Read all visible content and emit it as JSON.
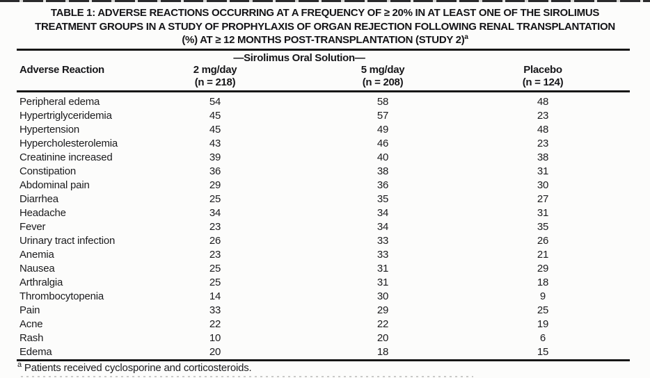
{
  "title": {
    "line1": "TABLE 1: ADVERSE REACTIONS OCCURRING AT A FREQUENCY OF ≥ 20% IN AT LEAST ONE OF THE SIROLIMUS",
    "line2": "TREATMENT GROUPS IN A STUDY OF PROPHYLAXIS OF ORGAN REJECTION FOLLOWING RENAL TRANSPLANTATION",
    "line3": "(%) AT ≥ 12 MONTHS POST-TRANSPLANTATION (STUDY 2)",
    "superscript": "a"
  },
  "table": {
    "group_header": "—Sirolimus Oral Solution—",
    "columns": [
      {
        "label": "Adverse Reaction",
        "n": ""
      },
      {
        "label": "2 mg/day",
        "n": "(n = 218)"
      },
      {
        "label": "5 mg/day",
        "n": "(n = 208)"
      },
      {
        "label": "Placebo",
        "n": "(n = 124)"
      }
    ],
    "rows": [
      {
        "reaction": "Peripheral edema",
        "values": [
          "54",
          "58",
          "48"
        ]
      },
      {
        "reaction": "Hypertriglyceridemia",
        "values": [
          "45",
          "57",
          "23"
        ]
      },
      {
        "reaction": "Hypertension",
        "values": [
          "45",
          "49",
          "48"
        ]
      },
      {
        "reaction": "Hypercholesterolemia",
        "values": [
          "43",
          "46",
          "23"
        ]
      },
      {
        "reaction": "Creatinine increased",
        "values": [
          "39",
          "40",
          "38"
        ]
      },
      {
        "reaction": "Constipation",
        "values": [
          "36",
          "38",
          "31"
        ]
      },
      {
        "reaction": "Abdominal pain",
        "values": [
          "29",
          "36",
          "30"
        ]
      },
      {
        "reaction": "Diarrhea",
        "values": [
          "25",
          "35",
          "27"
        ]
      },
      {
        "reaction": "Headache",
        "values": [
          "34",
          "34",
          "31"
        ]
      },
      {
        "reaction": "Fever",
        "values": [
          "23",
          "34",
          "35"
        ]
      },
      {
        "reaction": "Urinary tract infection",
        "values": [
          "26",
          "33",
          "26"
        ]
      },
      {
        "reaction": "Anemia",
        "values": [
          "23",
          "33",
          "21"
        ]
      },
      {
        "reaction": "Nausea",
        "values": [
          "25",
          "31",
          "29"
        ]
      },
      {
        "reaction": "Arthralgia",
        "values": [
          "25",
          "31",
          "18"
        ]
      },
      {
        "reaction": "Thrombocytopenia",
        "values": [
          "14",
          "30",
          "9"
        ]
      },
      {
        "reaction": "Pain",
        "values": [
          "33",
          "29",
          "25"
        ]
      },
      {
        "reaction": "Acne",
        "values": [
          "22",
          "22",
          "19"
        ]
      },
      {
        "reaction": "Rash",
        "values": [
          "10",
          "20",
          "6"
        ]
      },
      {
        "reaction": "Edema",
        "values": [
          "20",
          "18",
          "15"
        ]
      }
    ]
  },
  "footnote": {
    "marker": "a",
    "text": "Patients received cyclosporine and corticosteroids."
  },
  "colors": {
    "text": "#1b1b1d",
    "rule": "#161616",
    "background": "#fcfcfb"
  }
}
